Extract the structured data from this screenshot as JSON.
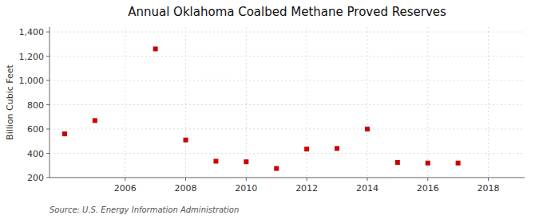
{
  "chart_data": {
    "type": "scatter",
    "title": "Annual Oklahoma Coalbed Methane Proved Reserves",
    "ylabel": "Billion Cubic Feet",
    "annotations": [
      "Source: U.S. Energy Information Administration"
    ],
    "x": [
      2004,
      2005,
      2007,
      2008,
      2009,
      2010,
      2011,
      2012,
      2013,
      2014,
      2015,
      2016,
      2017
    ],
    "values": [
      560,
      670,
      1260,
      510,
      335,
      330,
      275,
      435,
      440,
      600,
      325,
      320,
      320
    ],
    "color": "#cc0000",
    "marker": "square",
    "xlim": [
      2003.5,
      2019.2
    ],
    "ylim": [
      200,
      1440
    ],
    "xticks": [
      2006,
      2008,
      2010,
      2012,
      2014,
      2016,
      2018
    ],
    "yticks": [
      200,
      400,
      600,
      800,
      {
        "value": 1000,
        "label": "1,000"
      },
      {
        "value": 1200,
        "label": "1,200"
      },
      {
        "value": 1400,
        "label": "1,400"
      }
    ],
    "grid": true
  }
}
